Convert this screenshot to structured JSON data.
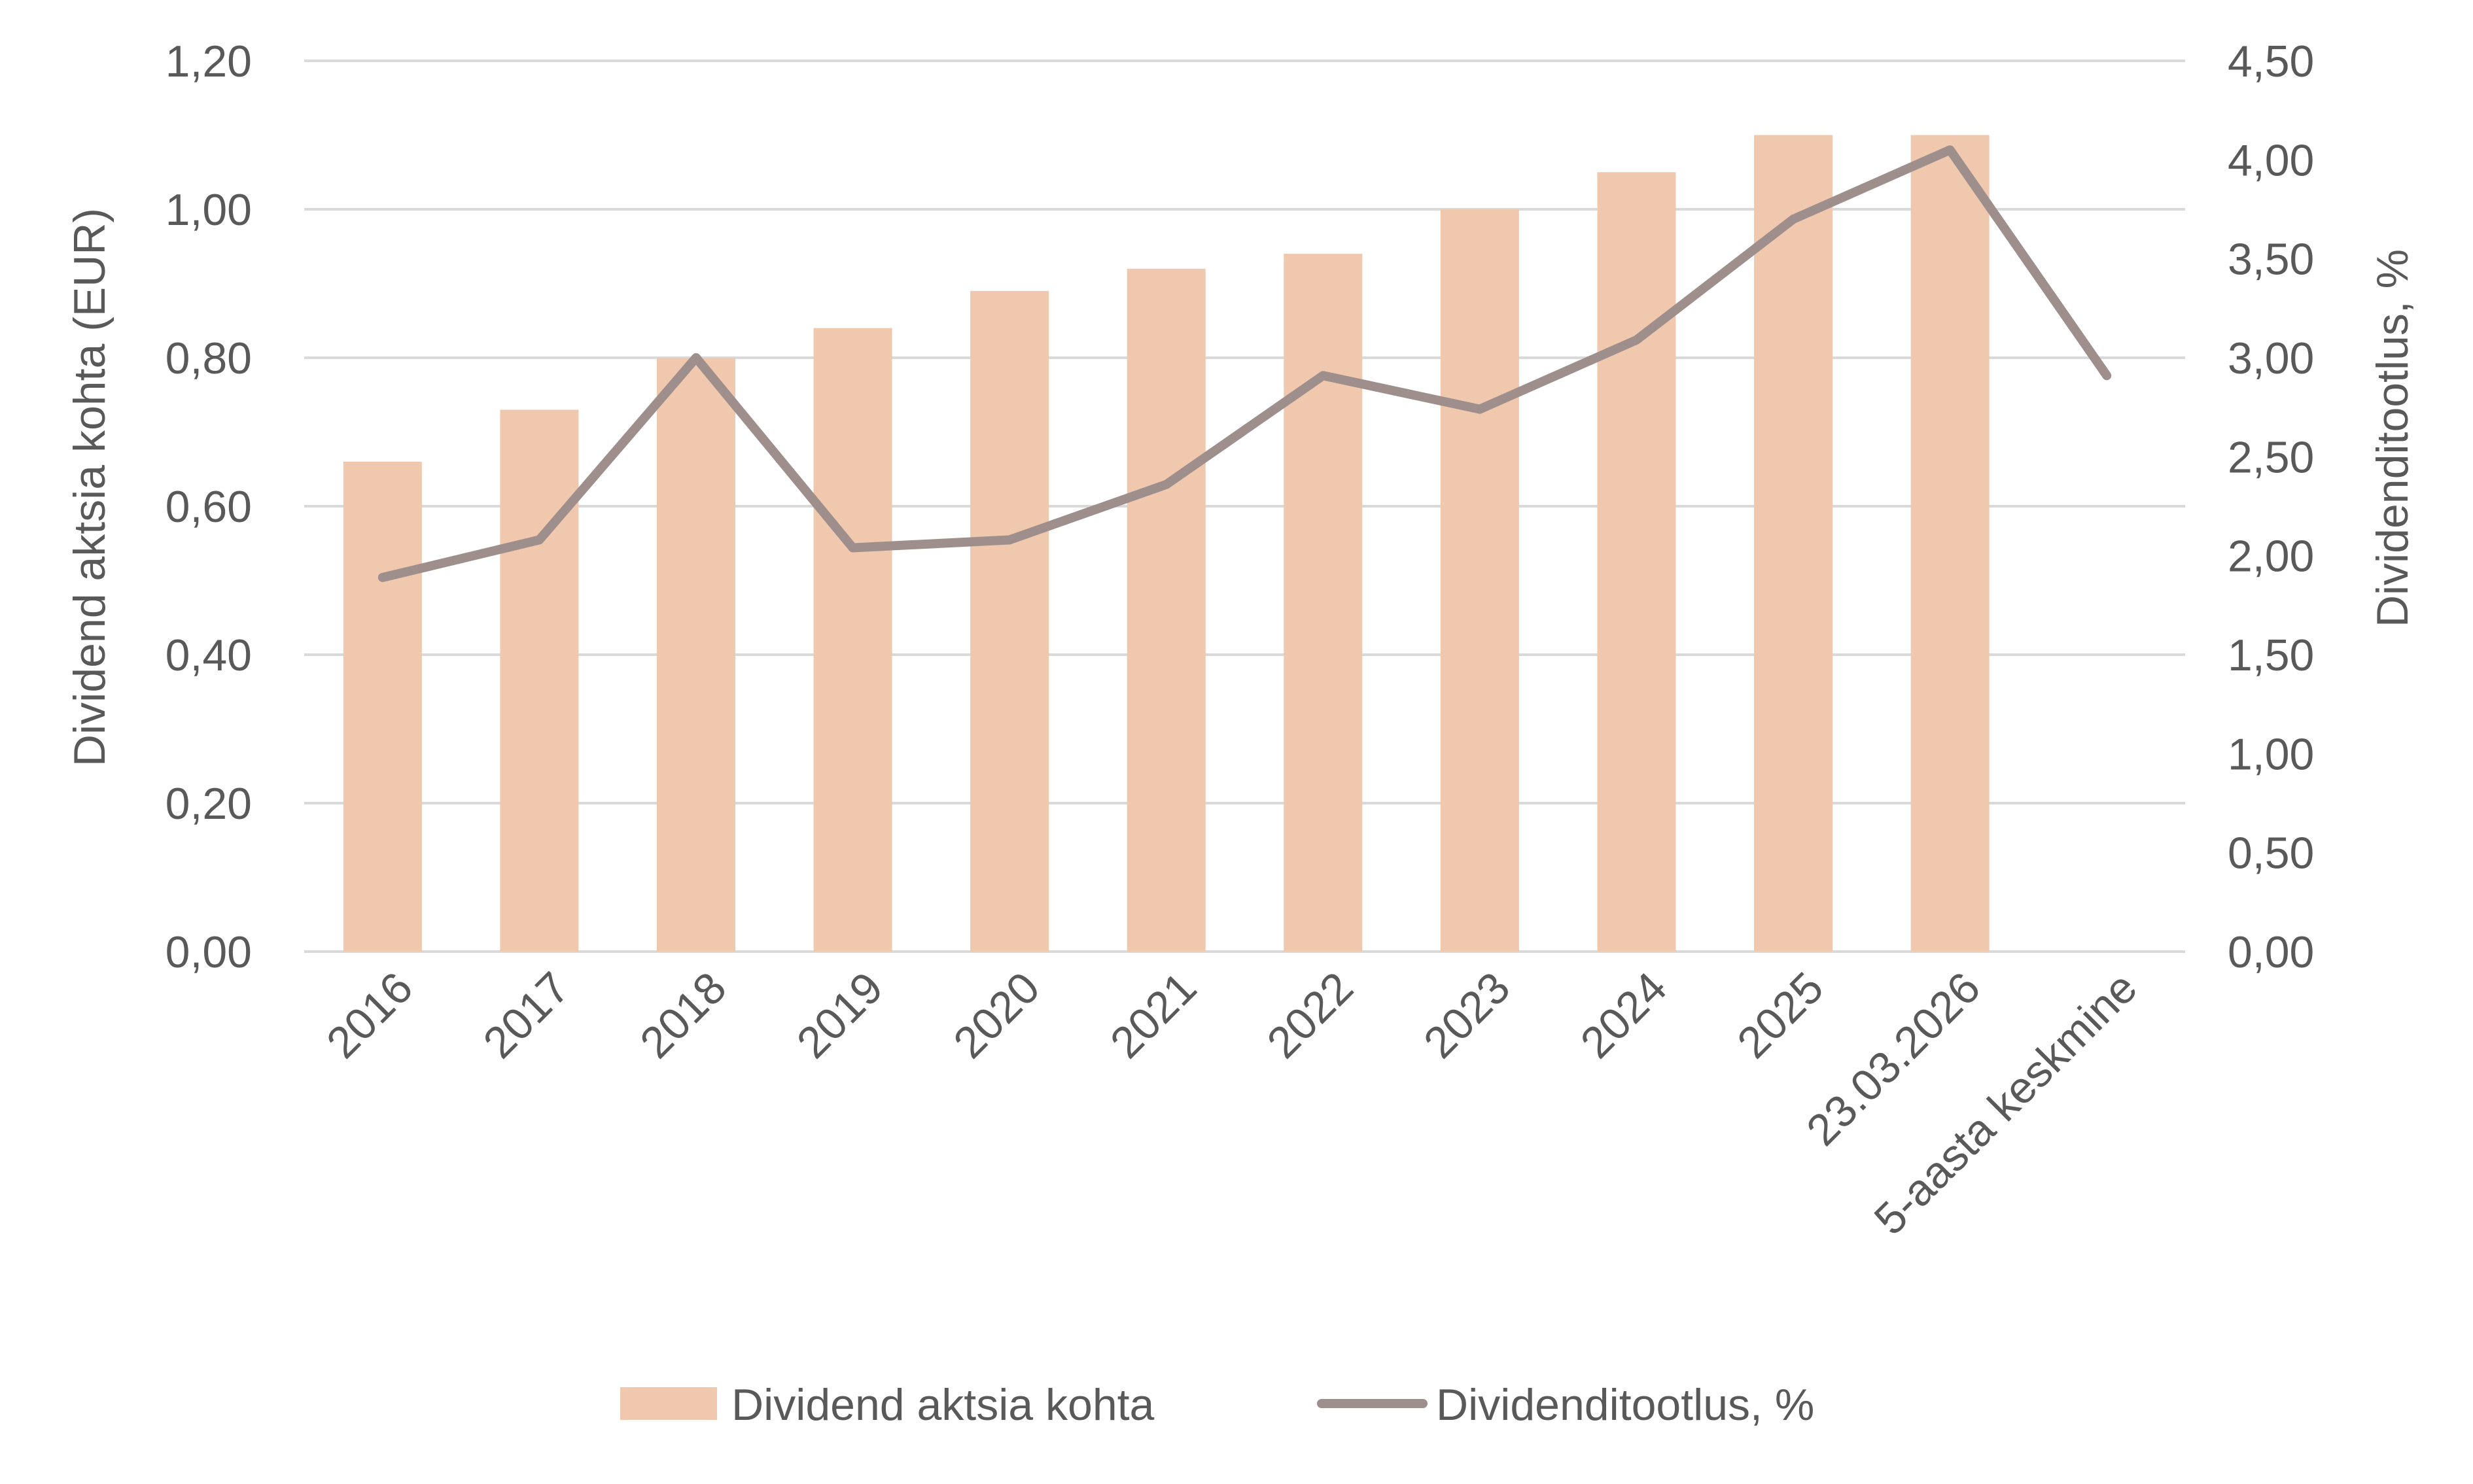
{
  "chart_data": {
    "type": "bar+line",
    "categories": [
      "2016",
      "2017",
      "2018",
      "2019",
      "2020",
      "2021",
      "2022",
      "2023",
      "2024",
      "2025",
      "23.03.2026",
      "5-aasta keskmine"
    ],
    "series": [
      {
        "name": "Dividend aktsia kohta",
        "type": "bar",
        "axis": "left",
        "values": [
          0.66,
          0.73,
          0.8,
          0.84,
          0.89,
          0.92,
          0.94,
          1.0,
          1.05,
          1.1,
          1.1,
          null
        ],
        "color": "#EFC8AE"
      },
      {
        "name": "Dividenditootlus, %",
        "type": "line",
        "axis": "right",
        "values": [
          1.89,
          2.08,
          3.0,
          2.04,
          2.08,
          2.36,
          2.91,
          2.74,
          3.09,
          3.7,
          4.05,
          2.91
        ],
        "color": "#9E8F8D"
      }
    ],
    "ylabel": "Dividend aktsia kohta (EUR)",
    "y2label": "Dividenditootlus, %",
    "ylim": [
      0,
      1.2
    ],
    "y2lim": [
      0,
      4.5
    ],
    "yticks": [
      "0,00",
      "0,20",
      "0,40",
      "0,60",
      "0,80",
      "1,00",
      "1,20"
    ],
    "y2ticks": [
      "0,00",
      "0,50",
      "1,00",
      "1,50",
      "2,00",
      "2,50",
      "3,00",
      "3,50",
      "4,00",
      "4,50"
    ],
    "grid": true,
    "legend_position": "bottom",
    "gridline_color": "#D9D9D9",
    "text_color": "#595959"
  }
}
